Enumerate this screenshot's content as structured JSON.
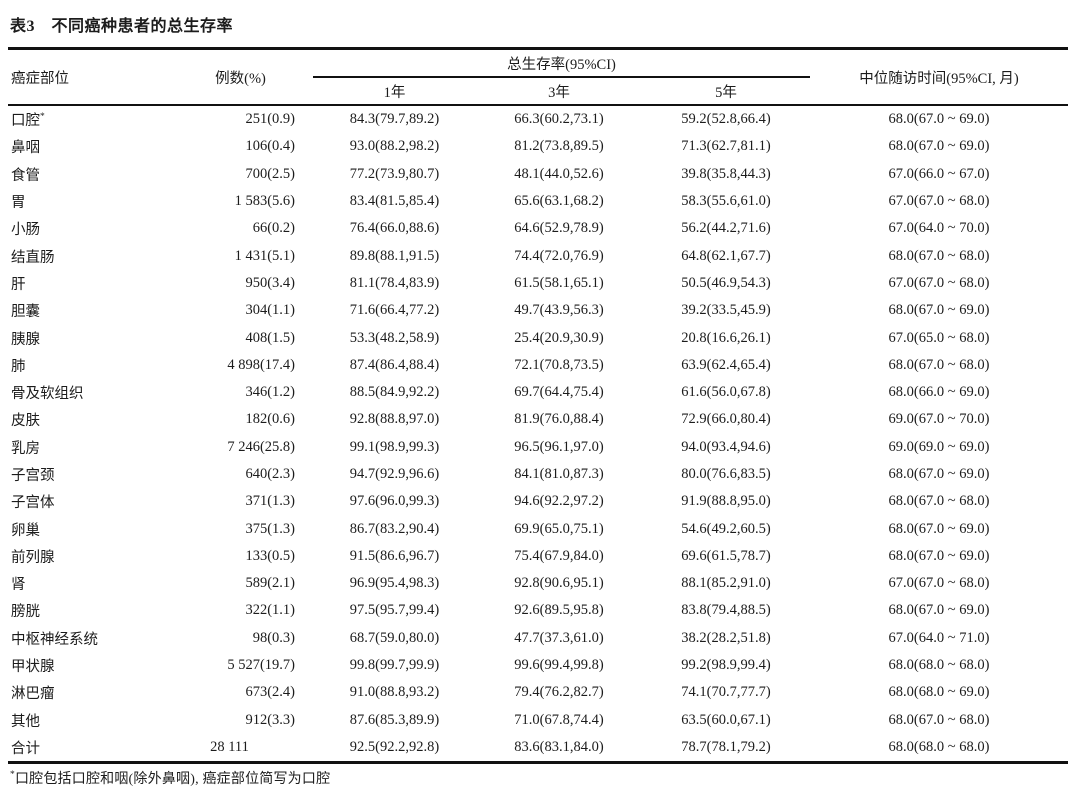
{
  "table": {
    "title": "表3　不同癌种患者的总生存率",
    "columns": {
      "site": "癌症部位",
      "cases": "例数(%)",
      "os_group": "总生存率(95%CI)",
      "y1": "1年",
      "y3": "3年",
      "y5": "5年",
      "followup": "中位随访时间(95%CI, 月)"
    },
    "rows": [
      {
        "site": "口腔",
        "sup": "*",
        "cases": "251(0.9)",
        "y1": "84.3(79.7,89.2)",
        "y3": "66.3(60.2,73.1)",
        "y5": "59.2(52.8,66.4)",
        "followup": "68.0(67.0 ~ 69.0)"
      },
      {
        "site": "鼻咽",
        "cases": "106(0.4)",
        "y1": "93.0(88.2,98.2)",
        "y3": "81.2(73.8,89.5)",
        "y5": "71.3(62.7,81.1)",
        "followup": "68.0(67.0 ~ 69.0)"
      },
      {
        "site": "食管",
        "cases": "700(2.5)",
        "y1": "77.2(73.9,80.7)",
        "y3": "48.1(44.0,52.6)",
        "y5": "39.8(35.8,44.3)",
        "followup": "67.0(66.0 ~ 67.0)"
      },
      {
        "site": "胃",
        "cases": "1 583(5.6)",
        "y1": "83.4(81.5,85.4)",
        "y3": "65.6(63.1,68.2)",
        "y5": "58.3(55.6,61.0)",
        "followup": "67.0(67.0 ~ 68.0)"
      },
      {
        "site": "小肠",
        "cases": "66(0.2)",
        "y1": "76.4(66.0,88.6)",
        "y3": "64.6(52.9,78.9)",
        "y5": "56.2(44.2,71.6)",
        "followup": "67.0(64.0 ~ 70.0)"
      },
      {
        "site": "结直肠",
        "cases": "1 431(5.1)",
        "y1": "89.8(88.1,91.5)",
        "y3": "74.4(72.0,76.9)",
        "y5": "64.8(62.1,67.7)",
        "followup": "68.0(67.0 ~ 68.0)"
      },
      {
        "site": "肝",
        "cases": "950(3.4)",
        "y1": "81.1(78.4,83.9)",
        "y3": "61.5(58.1,65.1)",
        "y5": "50.5(46.9,54.3)",
        "followup": "67.0(67.0 ~ 68.0)"
      },
      {
        "site": "胆囊",
        "cases": "304(1.1)",
        "y1": "71.6(66.4,77.2)",
        "y3": "49.7(43.9,56.3)",
        "y5": "39.2(33.5,45.9)",
        "followup": "68.0(67.0 ~ 69.0)"
      },
      {
        "site": "胰腺",
        "cases": "408(1.5)",
        "y1": "53.3(48.2,58.9)",
        "y3": "25.4(20.9,30.9)",
        "y5": "20.8(16.6,26.1)",
        "followup": "67.0(65.0 ~ 68.0)"
      },
      {
        "site": "肺",
        "cases": "4 898(17.4)",
        "y1": "87.4(86.4,88.4)",
        "y3": "72.1(70.8,73.5)",
        "y5": "63.9(62.4,65.4)",
        "followup": "68.0(67.0 ~ 68.0)"
      },
      {
        "site": "骨及软组织",
        "cases": "346(1.2)",
        "y1": "88.5(84.9,92.2)",
        "y3": "69.7(64.4,75.4)",
        "y5": "61.6(56.0,67.8)",
        "followup": "68.0(66.0 ~ 69.0)"
      },
      {
        "site": "皮肤",
        "cases": "182(0.6)",
        "y1": "92.8(88.8,97.0)",
        "y3": "81.9(76.0,88.4)",
        "y5": "72.9(66.0,80.4)",
        "followup": "69.0(67.0 ~ 70.0)"
      },
      {
        "site": "乳房",
        "cases": "7 246(25.8)",
        "y1": "99.1(98.9,99.3)",
        "y3": "96.5(96.1,97.0)",
        "y5": "94.0(93.4,94.6)",
        "followup": "69.0(69.0 ~ 69.0)"
      },
      {
        "site": "子宫颈",
        "cases": "640(2.3)",
        "y1": "94.7(92.9,96.6)",
        "y3": "84.1(81.0,87.3)",
        "y5": "80.0(76.6,83.5)",
        "followup": "68.0(67.0 ~ 69.0)"
      },
      {
        "site": "子宫体",
        "cases": "371(1.3)",
        "y1": "97.6(96.0,99.3)",
        "y3": "94.6(92.2,97.2)",
        "y5": "91.9(88.8,95.0)",
        "followup": "68.0(67.0 ~ 68.0)"
      },
      {
        "site": "卵巢",
        "cases": "375(1.3)",
        "y1": "86.7(83.2,90.4)",
        "y3": "69.9(65.0,75.1)",
        "y5": "54.6(49.2,60.5)",
        "followup": "68.0(67.0 ~ 69.0)"
      },
      {
        "site": "前列腺",
        "cases": "133(0.5)",
        "y1": "91.5(86.6,96.7)",
        "y3": "75.4(67.9,84.0)",
        "y5": "69.6(61.5,78.7)",
        "followup": "68.0(67.0 ~ 69.0)"
      },
      {
        "site": "肾",
        "cases": "589(2.1)",
        "y1": "96.9(95.4,98.3)",
        "y3": "92.8(90.6,95.1)",
        "y5": "88.1(85.2,91.0)",
        "followup": "67.0(67.0 ~ 68.0)"
      },
      {
        "site": "膀胱",
        "cases": "322(1.1)",
        "y1": "97.5(95.7,99.4)",
        "y3": "92.6(89.5,95.8)",
        "y5": "83.8(79.4,88.5)",
        "followup": "68.0(67.0 ~ 69.0)"
      },
      {
        "site": "中枢神经系统",
        "cases": "98(0.3)",
        "y1": "68.7(59.0,80.0)",
        "y3": "47.7(37.3,61.0)",
        "y5": "38.2(28.2,51.8)",
        "followup": "67.0(64.0 ~ 71.0)"
      },
      {
        "site": "甲状腺",
        "cases": "5 527(19.7)",
        "y1": "99.8(99.7,99.9)",
        "y3": "99.6(99.4,99.8)",
        "y5": "99.2(98.9,99.4)",
        "followup": "68.0(68.0 ~ 68.0)"
      },
      {
        "site": "淋巴瘤",
        "cases": "673(2.4)",
        "y1": "91.0(88.8,93.2)",
        "y3": "79.4(76.2,82.7)",
        "y5": "74.1(70.7,77.7)",
        "followup": "68.0(68.0 ~ 69.0)"
      },
      {
        "site": "其他",
        "cases": "912(3.3)",
        "y1": "87.6(85.3,89.9)",
        "y3": "71.0(67.8,74.4)",
        "y5": "63.5(60.0,67.1)",
        "followup": "68.0(67.0 ~ 68.0)"
      },
      {
        "site": "合计",
        "cases": "28 111",
        "y1": "92.5(92.2,92.8)",
        "y3": "83.6(83.1,84.0)",
        "y5": "78.7(78.1,79.2)",
        "followup": "68.0(68.0 ~ 68.0)",
        "is_total": true
      }
    ],
    "footnote": {
      "marker": "*",
      "text": "口腔包括口腔和咽(除外鼻咽), 癌症部位简写为口腔"
    }
  }
}
